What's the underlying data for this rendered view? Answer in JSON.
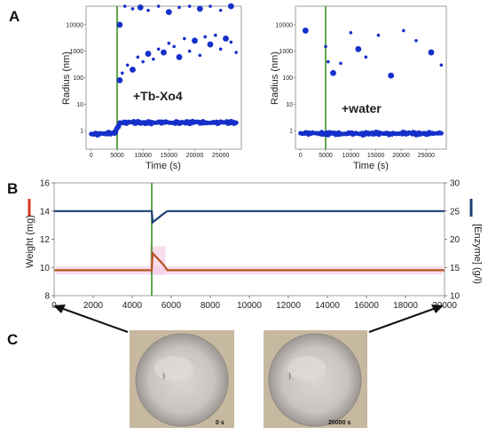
{
  "panels": {
    "a": "A",
    "b": "B",
    "c": "C"
  },
  "chart_data": [
    {
      "type": "scatter",
      "panel": "A-left",
      "title": "",
      "annotation": "+Tb-Xo4",
      "xlabel": "Time (s)",
      "ylabel": "Radius (nm)",
      "xlim": [
        -1000,
        29000
      ],
      "ylim": [
        0.2,
        50000
      ],
      "yscale": "log",
      "xticks": [
        0,
        5000,
        10000,
        15000,
        20000,
        25000
      ],
      "yticks": [
        1,
        10,
        100,
        1000,
        10000
      ],
      "ytick_labels": [
        "1",
        "10",
        "100",
        "1000",
        "10000"
      ],
      "marker_line_x": 5000,
      "series": [
        {
          "values_description_free": true,
          "x": [
            0,
            1500,
            3000,
            4500,
            5000,
            5600,
            6500,
            8000,
            10000,
            12000,
            14000,
            16000,
            18000,
            20000,
            22000,
            24000,
            26000,
            28000
          ],
          "y": [
            0.75,
            0.75,
            0.8,
            0.8,
            1.2,
            2.0,
            2.0,
            2.1,
            2.0,
            2.0,
            2.1,
            2.0,
            2.0,
            2.1,
            2.0,
            2.0,
            2.1,
            2.0
          ]
        },
        {
          "x": [
            5500,
            6000,
            7000,
            8000,
            9000,
            10000,
            11000,
            12000,
            13000,
            14000,
            15000,
            16000,
            17000,
            18000,
            19000,
            20000,
            21000,
            22000,
            23000,
            24000,
            25000,
            26000,
            27000,
            28000
          ],
          "y": [
            80,
            150,
            300,
            200,
            600,
            400,
            800,
            500,
            1200,
            900,
            2000,
            1500,
            600,
            3000,
            1000,
            2500,
            700,
            3500,
            1800,
            4000,
            1200,
            3000,
            2200,
            900
          ]
        },
        {
          "x": [
            5500,
            6500,
            8000,
            9500,
            11000,
            13000,
            15000,
            17000,
            19000,
            21000,
            23000,
            25000,
            27000
          ],
          "y": [
            10000,
            50000,
            40000,
            45000,
            35000,
            50000,
            30000,
            45000,
            50000,
            40000,
            50000,
            35000,
            50000
          ]
        }
      ]
    },
    {
      "type": "scatter",
      "panel": "A-right",
      "title": "",
      "annotation": "+water",
      "xlabel": "Time (s)",
      "ylabel": "Radius (nm)",
      "xlim": [
        -1000,
        29000
      ],
      "ylim": [
        0.2,
        50000
      ],
      "yscale": "log",
      "xticks": [
        0,
        5000,
        10000,
        15000,
        20000,
        25000
      ],
      "yticks": [
        1,
        10,
        100,
        1000,
        10000
      ],
      "ytick_labels": [
        "1",
        "10",
        "100",
        "1000",
        "10000"
      ],
      "marker_line_x": 5000,
      "series": [
        {
          "x": [
            0,
            2000,
            4000,
            5000,
            6000,
            8000,
            10000,
            12000,
            14000,
            16000,
            18000,
            20000,
            22000,
            24000,
            26000,
            28000
          ],
          "y": [
            0.8,
            0.8,
            0.8,
            0.75,
            0.8,
            0.75,
            0.8,
            0.75,
            0.8,
            0.8,
            0.75,
            0.8,
            0.8,
            0.75,
            0.8,
            0.8
          ]
        },
        {
          "x": [
            1000,
            5000,
            5500,
            6500,
            8000,
            10000,
            11500,
            13000,
            15500,
            18000,
            20500,
            23000,
            26000,
            28000
          ],
          "y": [
            6000,
            1500,
            400,
            150,
            350,
            5000,
            1200,
            600,
            4000,
            120,
            6000,
            2500,
            900,
            300
          ]
        }
      ]
    },
    {
      "type": "line",
      "panel": "B",
      "title": "",
      "xlabel": "",
      "ylabel": "Weight (mg)",
      "y2label": "[Enzyme] (g/l)",
      "xlim": [
        0,
        20000
      ],
      "ylim": [
        8,
        16
      ],
      "y2lim": [
        10,
        30
      ],
      "xticks": [
        0,
        2000,
        4000,
        6000,
        8000,
        10000,
        12000,
        14000,
        16000,
        18000,
        20000
      ],
      "yticks": [
        8,
        10,
        12,
        14,
        16
      ],
      "y2ticks": [
        10,
        15,
        20,
        25,
        30
      ],
      "marker_line_x": 5000,
      "series": [
        {
          "axis": "left",
          "color": "#b5541f",
          "x": [
            0,
            4900,
            5000,
            5050,
            5600,
            5800,
            20000
          ],
          "y": [
            9.8,
            9.8,
            9.8,
            11.0,
            10.2,
            9.8,
            9.8
          ]
        },
        {
          "axis": "right",
          "color": "#1b3f73",
          "x": [
            0,
            4900,
            5000,
            5050,
            5600,
            5800,
            20000
          ],
          "y": [
            25.0,
            25.0,
            25.0,
            23.0,
            24.5,
            25.0,
            25.0
          ]
        }
      ]
    }
  ],
  "photos": {
    "left_label": "0 s",
    "right_label": "20000 s"
  },
  "colors": {
    "scatter": "#1530c9",
    "green": "#3a8f1f",
    "weight": "#b5541f",
    "enzyme": "#1b3f73",
    "band": "#f5cfe6"
  }
}
